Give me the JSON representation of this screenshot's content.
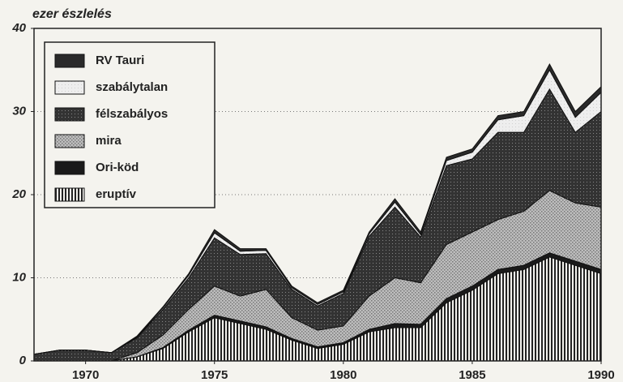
{
  "chart_data": {
    "type": "stacked_area",
    "y_label": "ezer észlelés",
    "x": [
      1968,
      1969,
      1970,
      1971,
      1972,
      1973,
      1974,
      1975,
      1976,
      1977,
      1978,
      1979,
      1980,
      1981,
      1982,
      1983,
      1984,
      1985,
      1986,
      1987,
      1988,
      1989,
      1990
    ],
    "series": [
      {
        "name": "eruptív",
        "color": "#222222",
        "values": [
          0,
          0,
          0,
          0,
          0.5,
          1.5,
          3.5,
          5.2,
          4.5,
          3.8,
          2.5,
          1.5,
          2,
          3.5,
          4,
          4,
          7,
          8.5,
          10.5,
          11,
          12.5,
          11.5,
          10.5
        ]
      },
      {
        "name": "Ori-köd",
        "color": "#1a1a1a",
        "values": [
          0,
          0,
          0,
          0,
          0,
          0.1,
          0.2,
          0.3,
          0.3,
          0.3,
          0.2,
          0.2,
          0.2,
          0.3,
          0.5,
          0.4,
          0.5,
          0.5,
          0.5,
          0.5,
          0.5,
          0.5,
          0.5
        ]
      },
      {
        "name": "mira",
        "color": "#777777",
        "values": [
          0,
          0,
          0,
          0,
          0.5,
          1.5,
          2.5,
          3.5,
          3,
          4.5,
          2.5,
          2,
          2,
          4,
          5.5,
          5,
          6.5,
          6.5,
          6,
          6.5,
          7.5,
          7,
          7.5
        ]
      },
      {
        "name": "félszabályos",
        "color": "#333333",
        "values": [
          0.8,
          1.3,
          1.3,
          1.0,
          1.8,
          3.1,
          3.8,
          5.8,
          5,
          4.3,
          3.4,
          2.9,
          3.9,
          7.2,
          8.5,
          5.5,
          9.5,
          8.8,
          10.5,
          9.5,
          12.2,
          8.5,
          11.5
        ]
      },
      {
        "name": "szabálytalan",
        "color": "#cfcfcf",
        "values": [
          0,
          0,
          0,
          0,
          0.1,
          0.2,
          0.3,
          0.6,
          0.4,
          0.4,
          0.2,
          0.2,
          0.2,
          0.3,
          0.6,
          0.3,
          0.6,
          0.8,
          1.5,
          2,
          2.3,
          1.8,
          2.3
        ]
      },
      {
        "name": "RV Tauri",
        "color": "#2a2a2a",
        "values": [
          0,
          0,
          0,
          0,
          0.1,
          0.1,
          0.2,
          0.4,
          0.3,
          0.2,
          0.2,
          0.2,
          0.2,
          0.2,
          0.4,
          0.3,
          0.4,
          0.4,
          0.5,
          0.5,
          0.7,
          0.7,
          0.7
        ]
      }
    ],
    "xlim": [
      1968,
      1990
    ],
    "xticks": [
      1970,
      1975,
      1980,
      1985,
      1990
    ],
    "ylim": [
      0,
      40
    ],
    "yticks": [
      0,
      10,
      20,
      30,
      40
    ],
    "grid": true
  }
}
